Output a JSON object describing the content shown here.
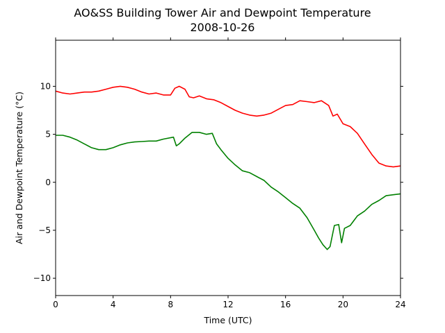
{
  "chart_data": {
    "type": "line",
    "title": "AO&SS Building Tower Air and Dewpoint Temperature",
    "subtitle": "2008-10-26",
    "xlabel": "Time (UTC)",
    "ylabel": "Air and Dewpoint Temperature (°C)",
    "xlim": [
      0,
      24
    ],
    "ylim": [
      -11.8,
      14.8
    ],
    "xticks": [
      0,
      4,
      8,
      12,
      16,
      20,
      24
    ],
    "yticks": [
      -10,
      -5,
      0,
      5,
      10
    ],
    "ytick_labels": [
      "−10",
      "−5",
      "0",
      "5",
      "10"
    ],
    "grid": false,
    "legend": "none",
    "series": [
      {
        "color": "#ff0000",
        "x": [
          0,
          0.5,
          1,
          1.5,
          2,
          2.5,
          3,
          3.5,
          4,
          4.5,
          5,
          5.5,
          6,
          6.5,
          7,
          7.5,
          8,
          8.3,
          8.6,
          9,
          9.3,
          9.6,
          10,
          10.5,
          11,
          11.5,
          12,
          12.5,
          13,
          13.5,
          14,
          14.5,
          15,
          15.5,
          16,
          16.5,
          17,
          17.5,
          18,
          18.5,
          19,
          19.3,
          19.6,
          20,
          20.5,
          21,
          21.5,
          22,
          22.5,
          23,
          23.5,
          24
        ],
        "y": [
          9.5,
          9.3,
          9.2,
          9.3,
          9.4,
          9.4,
          9.5,
          9.7,
          9.9,
          10.0,
          9.9,
          9.7,
          9.4,
          9.2,
          9.3,
          9.1,
          9.1,
          9.8,
          10.0,
          9.7,
          8.9,
          8.8,
          9.0,
          8.7,
          8.6,
          8.3,
          7.9,
          7.5,
          7.2,
          7.0,
          6.9,
          7.0,
          7.2,
          7.6,
          8.0,
          8.1,
          8.5,
          8.4,
          8.3,
          8.5,
          8.0,
          6.9,
          7.1,
          6.1,
          5.8,
          5.1,
          4.0,
          2.9,
          2.0,
          1.7,
          1.6,
          1.7
        ]
      },
      {
        "color": "#008000",
        "x": [
          0,
          0.5,
          1,
          1.5,
          2,
          2.5,
          3,
          3.5,
          4,
          4.5,
          5,
          5.5,
          6,
          6.5,
          7,
          7.5,
          8.2,
          8.4,
          8.6,
          9,
          9.5,
          10,
          10.5,
          10.9,
          11.2,
          11.5,
          12,
          12.5,
          13,
          13.5,
          14,
          14.5,
          15,
          15.5,
          16,
          16.5,
          17,
          17.5,
          18,
          18.3,
          18.6,
          18.9,
          19.1,
          19.4,
          19.7,
          19.9,
          20.1,
          20.5,
          21,
          21.5,
          22,
          22.5,
          23,
          23.5,
          24
        ],
        "y": [
          4.9,
          4.9,
          4.7,
          4.4,
          4.0,
          3.6,
          3.4,
          3.4,
          3.6,
          3.9,
          4.1,
          4.2,
          4.25,
          4.3,
          4.3,
          4.5,
          4.7,
          3.8,
          4.0,
          4.6,
          5.2,
          5.2,
          5.0,
          5.1,
          4.0,
          3.4,
          2.5,
          1.8,
          1.2,
          1.0,
          0.6,
          0.2,
          -0.5,
          -1.0,
          -1.6,
          -2.2,
          -2.7,
          -3.7,
          -5.0,
          -5.8,
          -6.5,
          -7.0,
          -6.7,
          -4.5,
          -4.4,
          -6.3,
          -4.8,
          -4.5,
          -3.5,
          -3.0,
          -2.3,
          -1.9,
          -1.4,
          -1.3,
          -1.2
        ]
      }
    ]
  }
}
